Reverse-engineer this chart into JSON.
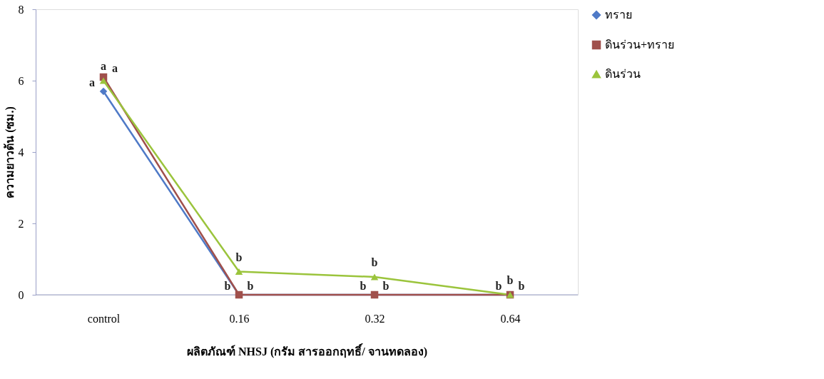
{
  "chart_data": {
    "type": "line",
    "xlabel": "ผลิตภัณฑ์ NHSJ (กรัม สารออกฤทธิ์/ จานทดลอง)",
    "ylabel": "ความยาวต้น (ซม.)",
    "categories": [
      "control",
      "0.16",
      "0.32",
      "0.64"
    ],
    "series": [
      {
        "name": "ทราย",
        "color": "#4f7ac7",
        "marker": "diamond",
        "values": [
          5.7,
          0,
          0,
          0
        ]
      },
      {
        "name": "ดินร่วน+ทราย",
        "color": "#a0504c",
        "marker": "square",
        "values": [
          6.1,
          0,
          0,
          0
        ]
      },
      {
        "name": "ดินร่วน",
        "color": "#9bc43c",
        "marker": "triangle",
        "values": [
          6.0,
          0.65,
          0.5,
          0
        ]
      }
    ],
    "ylim": [
      0,
      8
    ],
    "yticks": [
      0,
      2,
      4,
      6,
      8
    ],
    "grid": false,
    "legend": "right",
    "line_style": "solid",
    "annotations": [
      {
        "text": "a",
        "x": "control",
        "y": 5.7
      },
      {
        "text": "a",
        "x": "control",
        "y": 6.0
      },
      {
        "text": "a",
        "x": "control",
        "y": 6.1
      },
      {
        "text": "b",
        "x": "0.16",
        "y": 0
      },
      {
        "text": "b",
        "x": "0.16",
        "y": 0.65
      },
      {
        "text": "b",
        "x": "0.16",
        "y": 0
      },
      {
        "text": "b",
        "x": "0.32",
        "y": 0
      },
      {
        "text": "b",
        "x": "0.32",
        "y": 0.5
      },
      {
        "text": "b",
        "x": "0.32",
        "y": 0
      },
      {
        "text": "b",
        "x": "0.64",
        "y": 0
      },
      {
        "text": "b",
        "x": "0.64",
        "y": 0
      },
      {
        "text": "b",
        "x": "0.64",
        "y": 0
      }
    ]
  }
}
